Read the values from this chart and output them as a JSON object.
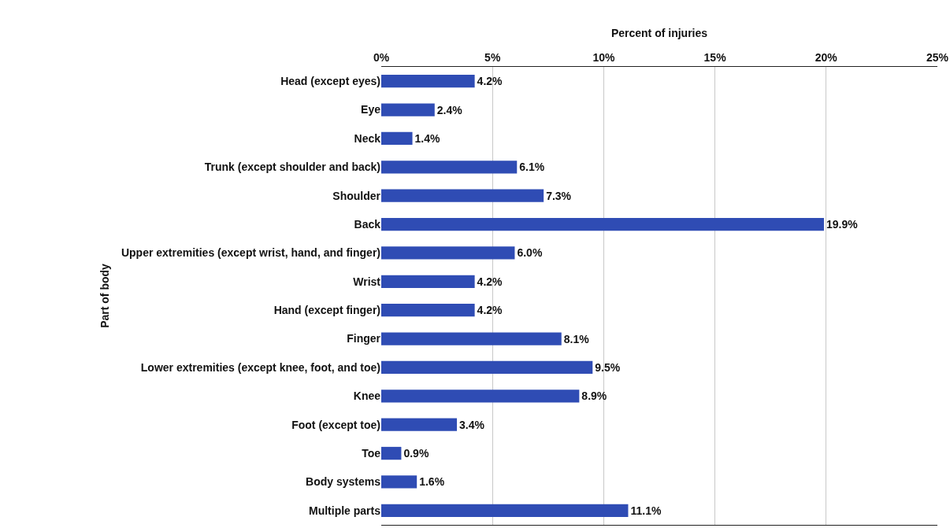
{
  "chart_data": {
    "type": "bar",
    "orientation": "horizontal",
    "xlabel": "Percent of injuries",
    "ylabel": "Part of body",
    "categories": [
      "Head (except eyes)",
      "Eye",
      "Neck",
      "Trunk (except shoulder and back)",
      "Shoulder",
      "Back",
      "Upper extremities (except wrist, hand, and finger)",
      "Wrist",
      "Hand (except finger)",
      "Finger",
      "Lower extremities (except knee, foot, and toe)",
      "Knee",
      "Foot (except toe)",
      "Toe",
      "Body systems",
      "Multiple parts"
    ],
    "values": [
      4.2,
      2.4,
      1.4,
      6.1,
      7.3,
      19.9,
      6.0,
      4.2,
      4.2,
      8.1,
      9.5,
      8.9,
      3.4,
      0.9,
      1.6,
      11.1
    ],
    "value_labels": [
      "4.2%",
      "2.4%",
      "1.4%",
      "6.1%",
      "7.3%",
      "19.9%",
      "6.0%",
      "4.2%",
      "4.2%",
      "8.1%",
      "9.5%",
      "8.9%",
      "3.4%",
      "0.9%",
      "1.6%",
      "11.1%"
    ],
    "color": "#2f4cb4",
    "xlim": [
      0,
      25
    ],
    "xticks": [
      {
        "value": 0,
        "label": "0%"
      },
      {
        "value": 5,
        "label": "5%"
      },
      {
        "value": 10,
        "label": "10%"
      },
      {
        "value": 15,
        "label": "15%"
      },
      {
        "value": 20,
        "label": "20%"
      },
      {
        "value": 25,
        "label": "25%"
      }
    ],
    "grid": "x"
  }
}
